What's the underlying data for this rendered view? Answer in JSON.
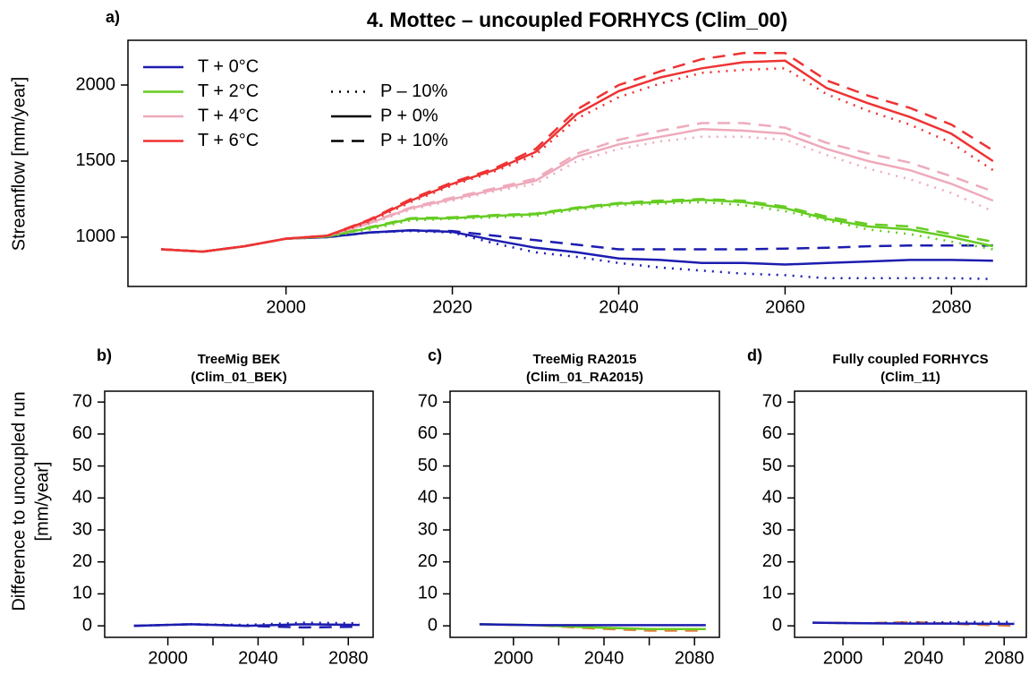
{
  "chart_data": [
    {
      "type": "line",
      "panel_label": "a)",
      "title": "4. Mottec – uncoupled FORHYCS (Clim_00)",
      "ylabel": [
        "Streamflow [mm/year]"
      ],
      "x": [
        1985,
        1990,
        1995,
        2000,
        2005,
        2010,
        2015,
        2020,
        2025,
        2030,
        2035,
        2040,
        2045,
        2050,
        2055,
        2060,
        2065,
        2070,
        2075,
        2080,
        2085
      ],
      "xlim": [
        1981,
        2089
      ],
      "xticks": [
        2000,
        2020,
        2040,
        2060,
        2080
      ],
      "ylim": [
        676,
        2294
      ],
      "yticks": [
        1000,
        1500,
        2000
      ],
      "legend": "top-left",
      "linestyle_legend": [
        {
          "label": "P – 10%",
          "dash": "dotted"
        },
        {
          "label": "P + 0%",
          "dash": "solid"
        },
        {
          "label": "P + 10%",
          "dash": "dashed"
        }
      ],
      "series": [
        {
          "name": "T + 0°C",
          "color": "#1c1cb0",
          "dash": "dotted",
          "values": [
            920,
            905,
            940,
            990,
            1000,
            1030,
            1040,
            1030,
            960,
            900,
            870,
            830,
            800,
            780,
            760,
            750,
            730,
            730,
            730,
            730,
            725
          ]
        },
        {
          "name": "T + 0°C",
          "color": "#1c1cb0",
          "dash": "solid",
          "values": [
            920,
            905,
            940,
            990,
            1000,
            1030,
            1045,
            1035,
            980,
            930,
            900,
            860,
            850,
            830,
            830,
            820,
            830,
            840,
            850,
            850,
            845
          ]
        },
        {
          "name": "T + 0°C",
          "color": "#1c1cb0",
          "dash": "dashed",
          "values": [
            920,
            905,
            940,
            990,
            1000,
            1030,
            1045,
            1040,
            1010,
            980,
            950,
            920,
            920,
            920,
            920,
            925,
            930,
            940,
            945,
            945,
            945
          ]
        },
        {
          "name": "T + 2°C",
          "color": "#66cc22",
          "dash": "dotted",
          "values": [
            920,
            905,
            940,
            990,
            1000,
            1050,
            1110,
            1120,
            1130,
            1140,
            1180,
            1210,
            1220,
            1230,
            1210,
            1170,
            1110,
            1050,
            1020,
            970,
            920
          ]
        },
        {
          "name": "T + 2°C",
          "color": "#66cc22",
          "dash": "solid",
          "values": [
            920,
            905,
            940,
            990,
            1005,
            1060,
            1120,
            1125,
            1140,
            1150,
            1190,
            1220,
            1230,
            1245,
            1230,
            1190,
            1120,
            1070,
            1050,
            1000,
            940
          ]
        },
        {
          "name": "T + 2°C",
          "color": "#66cc22",
          "dash": "dashed",
          "values": [
            920,
            905,
            940,
            990,
            1005,
            1065,
            1125,
            1130,
            1145,
            1155,
            1195,
            1225,
            1240,
            1250,
            1240,
            1200,
            1135,
            1085,
            1070,
            1020,
            970
          ]
        },
        {
          "name": "T + 4°C",
          "color": "#eeaabb",
          "dash": "dotted",
          "values": [
            920,
            905,
            940,
            990,
            1005,
            1085,
            1180,
            1240,
            1300,
            1350,
            1500,
            1580,
            1630,
            1660,
            1660,
            1640,
            1540,
            1450,
            1380,
            1290,
            1170
          ]
        },
        {
          "name": "T + 4°C",
          "color": "#eeaabb",
          "dash": "solid",
          "values": [
            920,
            905,
            940,
            990,
            1010,
            1090,
            1190,
            1250,
            1310,
            1370,
            1530,
            1610,
            1660,
            1710,
            1700,
            1680,
            1580,
            1500,
            1440,
            1350,
            1240
          ]
        },
        {
          "name": "T + 4°C",
          "color": "#eeaabb",
          "dash": "dashed",
          "values": [
            920,
            905,
            940,
            990,
            1010,
            1095,
            1195,
            1260,
            1320,
            1385,
            1550,
            1640,
            1700,
            1750,
            1750,
            1720,
            1620,
            1550,
            1490,
            1400,
            1300
          ]
        },
        {
          "name": "T + 6°C",
          "color": "#ee3333",
          "dash": "dotted",
          "values": [
            920,
            905,
            940,
            990,
            1005,
            1100,
            1230,
            1340,
            1430,
            1540,
            1780,
            1920,
            2010,
            2080,
            2100,
            2110,
            1940,
            1830,
            1740,
            1620,
            1440
          ]
        },
        {
          "name": "T + 6°C",
          "color": "#ee3333",
          "dash": "solid",
          "values": [
            920,
            905,
            940,
            990,
            1010,
            1110,
            1240,
            1350,
            1440,
            1560,
            1810,
            1960,
            2050,
            2110,
            2150,
            2160,
            1980,
            1880,
            1790,
            1680,
            1500
          ]
        },
        {
          "name": "T + 6°C",
          "color": "#ee3333",
          "dash": "dashed",
          "values": [
            920,
            905,
            940,
            990,
            1010,
            1115,
            1250,
            1360,
            1450,
            1580,
            1840,
            2000,
            2090,
            2170,
            2210,
            2210,
            2030,
            1930,
            1850,
            1740,
            1570
          ]
        }
      ]
    },
    {
      "type": "line",
      "panel_label": "b)",
      "title": [
        "TreeMig BEK",
        "(Clim_01_BEK)"
      ],
      "ylabel": [
        "Difference to uncoupled run",
        "[mm/year]"
      ],
      "x": [
        1985,
        2010,
        2035,
        2060,
        2085
      ],
      "xlim": [
        1972,
        2091
      ],
      "xticks": [
        2000,
        2040,
        2080
      ],
      "minor_xticks": [
        2020,
        2060
      ],
      "ylim": [
        -3.6,
        73.4
      ],
      "yticks": [
        0,
        10,
        20,
        30,
        40,
        50,
        60,
        70
      ],
      "series": [
        {
          "color": "#1c1cb0",
          "dash": "dotted",
          "values": [
            0,
            0.5,
            0.3,
            1,
            0.8
          ]
        },
        {
          "color": "#1c1cb0",
          "dash": "dashed",
          "values": [
            0,
            0.5,
            0,
            -0.5,
            -0.3
          ]
        },
        {
          "color": "#1c1cb0",
          "dash": "solid",
          "values": [
            0,
            0.5,
            0,
            0.5,
            0.3
          ]
        }
      ]
    },
    {
      "type": "line",
      "panel_label": "c)",
      "title": [
        "TreeMig RA2015",
        "(Clim_01_RA2015)"
      ],
      "x": [
        1985,
        2010,
        2035,
        2060,
        2085
      ],
      "xlim": [
        1972,
        2091
      ],
      "xticks": [
        2000,
        2040,
        2080
      ],
      "minor_xticks": [
        2020,
        2060
      ],
      "ylim": [
        -3.6,
        73.4
      ],
      "yticks": [
        0,
        10,
        20,
        30,
        40,
        50,
        60,
        70
      ],
      "series": [
        {
          "color": "#e08040",
          "dash": "dashed",
          "values": [
            0.5,
            0.2,
            -0.8,
            -1.5,
            -1.5
          ]
        },
        {
          "color": "#66cc22",
          "dash": "solid",
          "values": [
            0.5,
            0.2,
            -0.5,
            -1,
            -1
          ]
        },
        {
          "color": "#1c1cb0",
          "dash": "solid",
          "values": [
            0.5,
            0.2,
            0.2,
            0.2,
            0.2
          ]
        }
      ]
    },
    {
      "type": "line",
      "panel_label": "d)",
      "title": [
        "Fully coupled FORHYCS",
        "(Clim_11)"
      ],
      "x": [
        1985,
        2010,
        2035,
        2060,
        2085
      ],
      "xlim": [
        1976,
        2091
      ],
      "xticks": [
        2000,
        2040,
        2080
      ],
      "minor_xticks": [
        2020,
        2060
      ],
      "ylim": [
        -3.6,
        73.4
      ],
      "yticks": [
        0,
        10,
        20,
        30,
        40,
        50,
        60,
        70
      ],
      "series": [
        {
          "color": "#e08040",
          "dash": "dashed",
          "values": [
            1,
            0.8,
            1.2,
            0.5,
            0
          ]
        },
        {
          "color": "#1c1cb0",
          "dash": "dotted",
          "values": [
            1,
            0.8,
            1,
            1.2,
            1.2
          ]
        },
        {
          "color": "#1c1cb0",
          "dash": "solid",
          "values": [
            1,
            0.8,
            0.7,
            0.7,
            0.6
          ]
        }
      ]
    }
  ]
}
